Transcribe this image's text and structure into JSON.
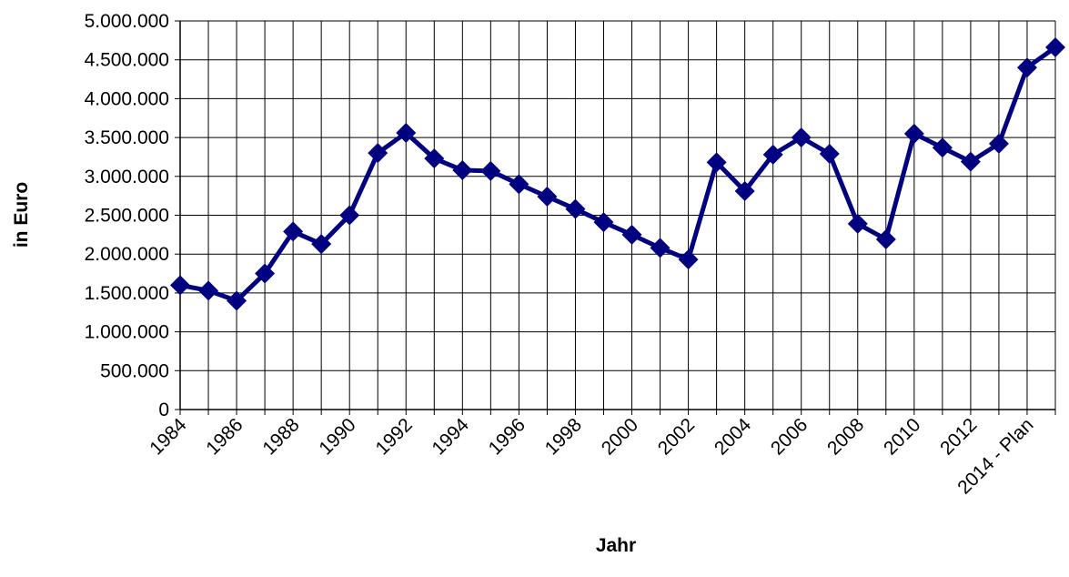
{
  "chart_data": {
    "type": "line",
    "x_label": "Jahr",
    "y_label": "in Euro",
    "categories": [
      "1984",
      null,
      "1986",
      null,
      "1988",
      null,
      "1990",
      null,
      "1992",
      null,
      "1994",
      null,
      "1996",
      null,
      "1998",
      null,
      "2000",
      null,
      "2002",
      null,
      "2004",
      null,
      "2006",
      null,
      "2008",
      null,
      "2010",
      null,
      "2012",
      null,
      "2014 - Plan",
      null
    ],
    "series": [
      {
        "name": "in Euro",
        "color": "#000080",
        "values": [
          1600000,
          1530000,
          1400000,
          1750000,
          2290000,
          2130000,
          2500000,
          3300000,
          3560000,
          3230000,
          3080000,
          3070000,
          2900000,
          2740000,
          2580000,
          2410000,
          2250000,
          2080000,
          1930000,
          3180000,
          2810000,
          3280000,
          3500000,
          3290000,
          2390000,
          2190000,
          3550000,
          3370000,
          3190000,
          3420000,
          4400000,
          4660000
        ]
      }
    ],
    "ylim": [
      0,
      5000000
    ],
    "yticks": [
      0,
      {
        "value": 500000,
        "label": "500.000"
      },
      {
        "value": 1000000,
        "label": "1.000.000"
      },
      {
        "value": 1500000,
        "label": "1.500.000"
      },
      {
        "value": 2000000,
        "label": "2.000.000"
      },
      {
        "value": 2500000,
        "label": "2.500.000"
      },
      {
        "value": 3000000,
        "label": "3.000.000"
      },
      {
        "value": 3500000,
        "label": "3.500.000"
      },
      {
        "value": 4000000,
        "label": "4.000.000"
      },
      {
        "value": 4500000,
        "label": "4.500.000"
      },
      {
        "value": 5000000,
        "label": "5.000.000"
      }
    ],
    "grid": true
  }
}
